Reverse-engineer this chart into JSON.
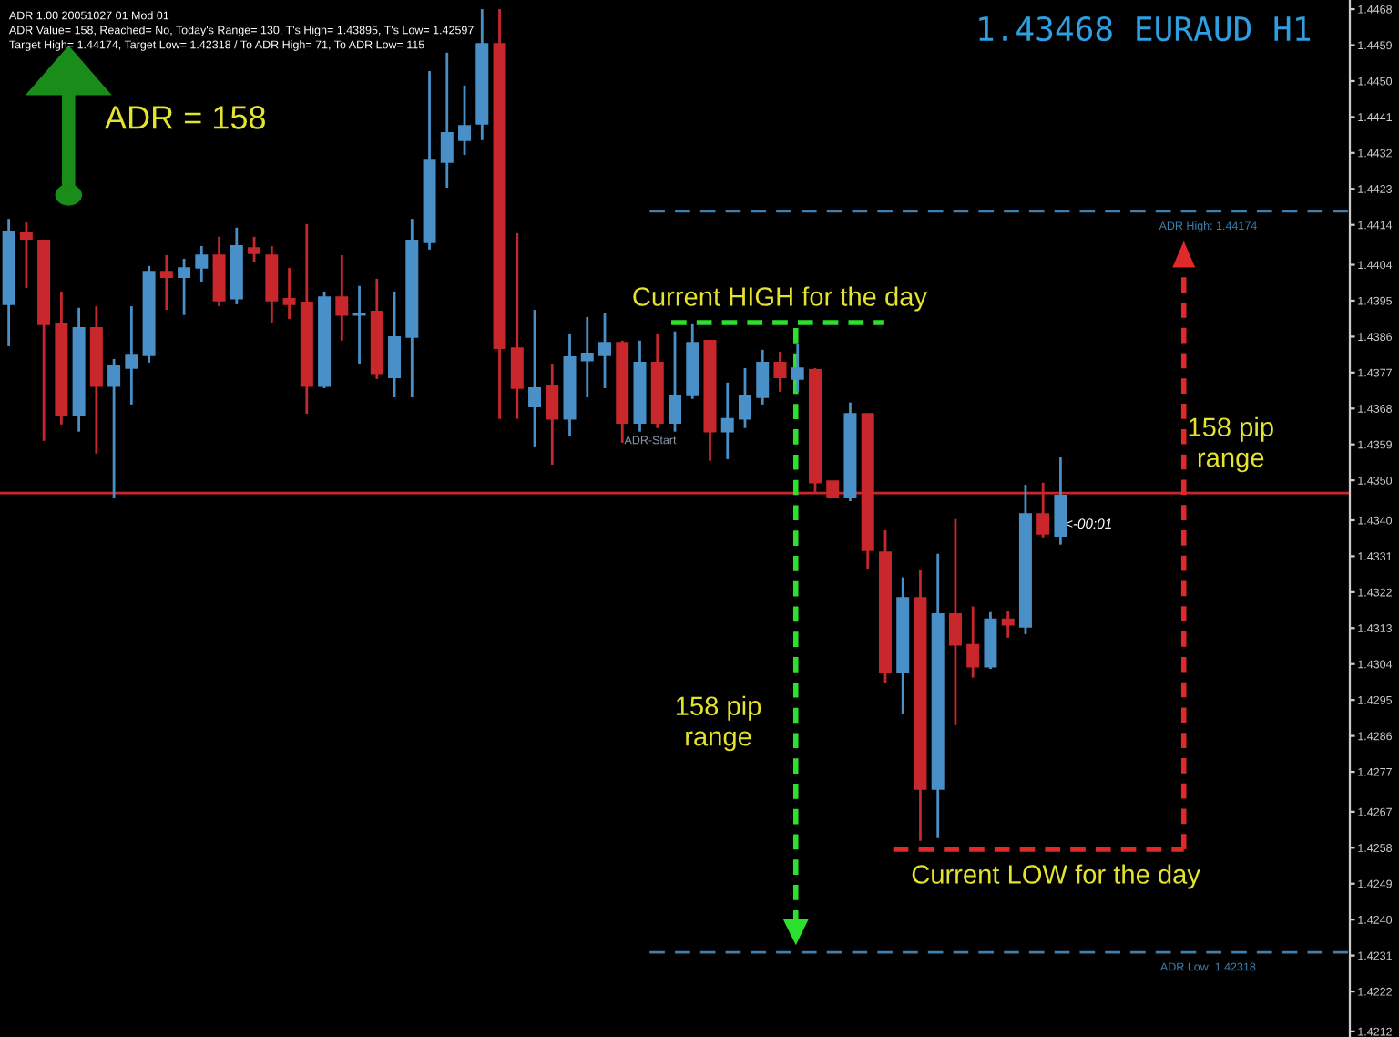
{
  "chart_data": {
    "type": "candlestick",
    "title": "1.43468 EURAUD H1",
    "categories": [
      null,
      null,
      null,
      null,
      null,
      null,
      null,
      null,
      null,
      null,
      null,
      null,
      null,
      null,
      null,
      null,
      null,
      null,
      null,
      null,
      null,
      null,
      null,
      null,
      null,
      null,
      null,
      null,
      null,
      null,
      null,
      null,
      null,
      null,
      null,
      null,
      null,
      null,
      null,
      null,
      null,
      null,
      null,
      null,
      null,
      null,
      null,
      null,
      null,
      null,
      null,
      null,
      null,
      null,
      null,
      null,
      null,
      null,
      null,
      null,
      null,
      null,
      null,
      null,
      null,
      null,
      null,
      null,
      null,
      null,
      null,
      null,
      null,
      null,
      null,
      null,
      null
    ],
    "ohlc": [
      [
        1.43941,
        1.44155,
        1.43836,
        1.44123
      ],
      [
        1.44119,
        1.44146,
        1.43982,
        1.44105
      ],
      [
        1.44101,
        1.44101,
        1.43599,
        1.43891
      ],
      [
        1.43891,
        1.43973,
        1.4364,
        1.43663
      ],
      [
        1.43663,
        1.43932,
        1.43622,
        1.43882
      ],
      [
        1.43882,
        1.43936,
        1.43567,
        1.43736
      ],
      [
        1.43736,
        1.43804,
        1.43457,
        1.43786
      ],
      [
        1.43781,
        1.43936,
        1.4369,
        1.43813
      ],
      [
        1.43813,
        1.44037,
        1.43795,
        1.44023
      ],
      [
        1.44023,
        1.44064,
        1.43927,
        1.44009
      ],
      [
        1.44009,
        1.44055,
        1.43914,
        1.44032
      ],
      [
        1.44032,
        1.44087,
        1.43996,
        1.44064
      ],
      [
        1.44064,
        1.4411,
        1.43936,
        1.4395
      ],
      [
        1.43955,
        1.44133,
        1.43941,
        1.44087
      ],
      [
        1.44082,
        1.4411,
        1.44046,
        1.44069
      ],
      [
        1.44064,
        1.44087,
        1.43895,
        1.4395
      ],
      [
        1.43955,
        1.44032,
        1.43904,
        1.43941
      ],
      [
        1.43946,
        1.44142,
        1.43667,
        1.43736
      ],
      [
        1.43736,
        1.43973,
        1.43731,
        1.43959
      ],
      [
        1.43959,
        1.44064,
        1.4385,
        1.43914
      ],
      [
        1.43914,
        1.43987,
        1.4379,
        1.43918
      ],
      [
        1.43923,
        1.44005,
        1.43754,
        1.43768
      ],
      [
        1.43758,
        1.43973,
        1.43708,
        1.43859
      ],
      [
        1.43859,
        1.44155,
        1.43708,
        1.44101
      ],
      [
        1.44096,
        1.44525,
        1.44078,
        1.44301
      ],
      [
        1.44297,
        1.44571,
        1.44233,
        1.4437
      ],
      [
        1.44352,
        1.44489,
        1.44315,
        1.44388
      ],
      [
        1.44393,
        1.4468,
        1.44352,
        1.44593
      ],
      [
        1.44593,
        1.4468,
        1.43654,
        1.43831
      ],
      [
        1.43831,
        1.44119,
        1.43654,
        1.43731
      ],
      [
        1.43685,
        1.43927,
        1.43585,
        1.43731
      ],
      [
        1.43736,
        1.4379,
        1.43539,
        1.43654
      ],
      [
        1.43654,
        1.43868,
        1.43612,
        1.43809
      ],
      [
        1.438,
        1.43909,
        1.43708,
        1.43818
      ],
      [
        1.43813,
        1.43918,
        1.43731,
        1.43845
      ],
      [
        1.43845,
        1.4385,
        1.43594,
        1.43644
      ],
      [
        1.43644,
        1.4385,
        1.43622,
        1.43795
      ],
      [
        1.43795,
        1.43868,
        1.43631,
        1.43644
      ],
      [
        1.43644,
        1.43873,
        1.43622,
        1.43713
      ],
      [
        1.43713,
        1.43891,
        1.43704,
        1.43845
      ],
      [
        1.4385,
        1.4385,
        1.43549,
        1.43622
      ],
      [
        1.43622,
        1.43745,
        1.43553,
        1.43654
      ],
      [
        1.43654,
        1.43781,
        1.43631,
        1.43713
      ],
      [
        1.43708,
        1.43827,
        1.4369,
        1.43795
      ],
      [
        1.43795,
        1.43822,
        1.43722,
        1.43758
      ],
      [
        1.43754,
        1.43841,
        1.43722,
        1.43781
      ],
      [
        1.43777,
        1.43781,
        1.43471,
        1.43494
      ],
      [
        1.43498,
        1.43498,
        1.43457,
        1.43457
      ],
      [
        1.43457,
        1.43695,
        1.43448,
        1.43667
      ],
      [
        1.43667,
        1.43667,
        1.43279,
        1.43325
      ],
      [
        1.4332,
        1.43375,
        1.42992,
        1.43019
      ],
      [
        1.43019,
        1.43257,
        1.42914,
        1.43206
      ],
      [
        1.43206,
        1.43275,
        1.42597,
        1.42727
      ],
      [
        1.42727,
        1.43316,
        1.42604,
        1.43165
      ],
      [
        1.43165,
        1.43403,
        1.42887,
        1.43088
      ],
      [
        1.43088,
        1.43184,
        1.43006,
        1.43033
      ],
      [
        1.43033,
        1.4317,
        1.43028,
        1.43152
      ],
      [
        1.43152,
        1.43174,
        1.43106,
        1.43138
      ],
      [
        1.43133,
        1.43489,
        1.43115,
        1.43416
      ],
      [
        1.43416,
        1.43494,
        1.43357,
        1.43366
      ],
      [
        1.43361,
        1.43558,
        1.43339,
        1.43462
      ],
      null,
      null,
      null,
      null,
      null,
      null,
      null,
      null,
      null,
      null,
      null,
      null,
      null,
      null,
      null,
      null
    ],
    "colors": [
      "#4a90c8",
      "#c8282c",
      "#c8282c",
      "#c8282c",
      "#4a90c8",
      "#c8282c",
      "#4a90c8",
      "#4a90c8",
      "#4a90c8",
      "#c8282c",
      "#4a90c8",
      "#4a90c8",
      "#c8282c",
      "#4a90c8",
      "#c8282c",
      "#c8282c",
      "#c8282c",
      "#c8282c",
      "#4a90c8",
      "#c8282c",
      "#4a90c8",
      "#c8282c",
      "#4a90c8",
      "#4a90c8",
      "#4a90c8",
      "#4a90c8",
      "#4a90c8",
      "#4a90c8",
      "#c8282c",
      "#c8282c",
      "#4a90c8",
      "#c8282c",
      "#4a90c8",
      "#4a90c8",
      "#4a90c8",
      "#c8282c",
      "#4a90c8",
      "#c8282c",
      "#4a90c8",
      "#4a90c8",
      "#c8282c",
      "#4a90c8",
      "#4a90c8",
      "#4a90c8",
      "#c8282c",
      "#4a90c8",
      "#c8282c",
      "#c8282c",
      "#4a90c8",
      "#c8282c",
      "#c8282c",
      "#4a90c8",
      "#c8282c",
      "#4a90c8",
      "#c8282c",
      "#c8282c",
      "#4a90c8",
      "#c8282c",
      "#4a90c8",
      "#c8282c",
      "#4a90c8",
      null,
      null,
      null,
      null,
      null,
      null,
      null,
      null,
      null,
      null,
      null,
      null,
      null,
      null,
      null,
      null
    ],
    "ylim": [
      1.42106,
      1.44703
    ],
    "yticks": [
      1.4468,
      1.4459,
      {
        "value": 1.445,
        "label": "1.4450"
      },
      1.4441,
      1.4432,
      1.4423,
      1.4414,
      1.4404,
      1.4395,
      1.4386,
      1.4377,
      1.4368,
      1.4359,
      {
        "value": 1.435,
        "label": "1.4350"
      },
      {
        "value": 1.434,
        "label": "1.4340"
      },
      1.4331,
      1.4322,
      1.4313,
      1.4304,
      1.4295,
      1.4286,
      1.4277,
      1.4267,
      1.4258,
      1.4249,
      {
        "value": 1.424,
        "label": "1.4240"
      },
      1.4231,
      1.4222,
      1.4212
    ],
    "tick_labels": "y",
    "grid": false,
    "ref_lines": [
      {
        "axis": "y",
        "value": 1.44174,
        "label": "ADR High: 1.44174",
        "color": "#3d7fae",
        "line_style": "dashed"
      },
      {
        "axis": "y",
        "value": 1.42318,
        "label": "ADR Low: 1.42318",
        "color": "#3d7fae",
        "line_style": "dashed"
      },
      {
        "axis": "y",
        "value": 1.43468,
        "label": null,
        "color": "#c8282c",
        "line_style": "solid"
      }
    ],
    "annotations": [
      "ADR 1.00 20051027 01 Mod 01",
      "ADR Value= 158, Reached= No, Today's Range= 130, T's High= 1.43895, T's Low= 1.42597",
      "Target High= 1.44174, Target Low= 1.42318 / To ADR High= 71, To ADR Low= 115",
      "ADR = 158",
      "Current HIGH for the day",
      "158 pip\nrange",
      "158 pip\nrange",
      "Current LOW for the day",
      "<-00:01",
      "ADR-Start"
    ]
  }
}
